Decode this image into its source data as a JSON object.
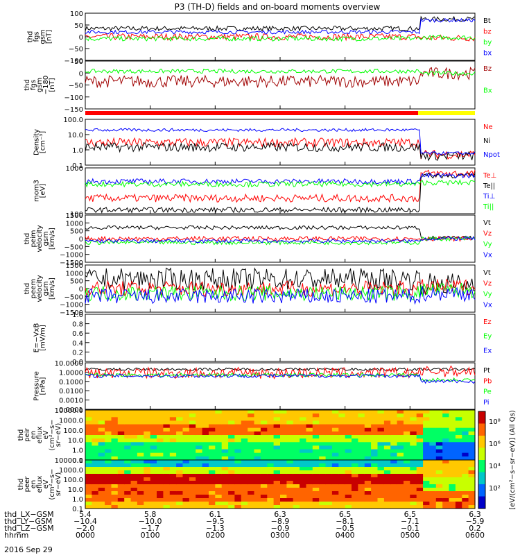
{
  "title": "P3 (TH-D) fields and on-board moments overview",
  "colors": {
    "black": "#000000",
    "red": "#ff0000",
    "green": "#00ff00",
    "blue": "#0000ff",
    "darkred": "#a00000",
    "yellow": "#ffff00"
  },
  "chart_data": [
    {
      "type": "line",
      "ylabel_lines": [
        "thd",
        "fgs",
        "gsm",
        "[nT]"
      ],
      "yticks": [
        "100",
        "50",
        "0",
        "−50",
        "−100"
      ],
      "ylim": [
        -100,
        100
      ],
      "series": [
        {
          "name": "Bt",
          "color": "#000000",
          "level": 35,
          "late_level": 75,
          "noise": 10
        },
        {
          "name": "bz",
          "color": "#ff0000",
          "level": 0,
          "late_level": -5,
          "noise": 14
        },
        {
          "name": "by",
          "color": "#00ff00",
          "level": -8,
          "late_level": -3,
          "noise": 10
        },
        {
          "name": "bx",
          "color": "#0000ff",
          "level": 20,
          "late_level": 70,
          "noise": 8
        }
      ]
    },
    {
      "type": "line",
      "ylabel_lines": [
        "thd",
        "fgs",
        "gsm",
        "−180",
        "[nT]"
      ],
      "yticks": [
        "50",
        "0",
        "−50",
        "−100",
        "−150"
      ],
      "ylim": [
        -175,
        60
      ],
      "series": [
        {
          "name": "Bz",
          "color": "#a00000",
          "level": -40,
          "late_level": 0,
          "noise": 30
        },
        {
          "name": "Bx",
          "color": "#00ff00",
          "level": 10,
          "late_level": 0,
          "noise": 10
        }
      ]
    },
    {
      "type": "line",
      "ylabel_lines": [
        "Density",
        "[cm⁻³]"
      ],
      "yticks": [
        "100.0",
        "10.0",
        "1.0",
        "0.1"
      ],
      "ylim": [
        0.1,
        100
      ],
      "log": true,
      "series": [
        {
          "name": "Ne",
          "color": "#ff0000",
          "level": 3,
          "late_level": 0.5,
          "noise": 0.3
        },
        {
          "name": "Ni",
          "color": "#000000",
          "level": 1.5,
          "late_level": 0.4,
          "noise": 0.3
        },
        {
          "name": "Npot",
          "color": "#0000ff",
          "level": 20,
          "late_level": 0.6,
          "noise": 0.1
        }
      ]
    },
    {
      "type": "line",
      "ylabel_lines": [
        "mom3",
        "[eV]"
      ],
      "yticks": [
        "1000",
        "100"
      ],
      "ylim": [
        50,
        3000
      ],
      "log": true,
      "series": [
        {
          "name": "Te⊥",
          "color": "#ff0000",
          "level": 200,
          "late_level": 1800,
          "noise": 0.15
        },
        {
          "name": "Te||",
          "color": "#000000",
          "level": 70,
          "late_level": 1500,
          "noise": 0.1
        },
        {
          "name": "Ti⊥",
          "color": "#0000ff",
          "level": 900,
          "late_level": 1500,
          "noise": 0.1
        },
        {
          "name": "Ti||",
          "color": "#00ff00",
          "level": 700,
          "late_level": 800,
          "noise": 0.1
        }
      ]
    },
    {
      "type": "line",
      "ylabel_lines": [
        "thd",
        "peim",
        "velocity",
        "gsm",
        "[km/s]"
      ],
      "yticks": [
        "1500",
        "1000",
        "500",
        "0",
        "−500",
        "−1000",
        "−1500"
      ],
      "ylim": [
        -1500,
        1500
      ],
      "series": [
        {
          "name": "Vt",
          "color": "#000000",
          "level": 700,
          "late_level": 50,
          "noise": 120
        },
        {
          "name": "Vz",
          "color": "#ff0000",
          "level": 0,
          "late_level": 0,
          "noise": 150
        },
        {
          "name": "Vy",
          "color": "#00ff00",
          "level": -250,
          "late_level": -10,
          "noise": 130
        },
        {
          "name": "Vx",
          "color": "#0000ff",
          "level": -150,
          "late_level": 0,
          "noise": 120
        }
      ]
    },
    {
      "type": "line",
      "ylabel_lines": [
        "thd",
        "peem",
        "velocity",
        "gsm",
        "[km/s]"
      ],
      "yticks": [
        "1500",
        "1000",
        "500",
        "0",
        "−500",
        "−1000",
        "−1500"
      ],
      "ylim": [
        -1500,
        1500
      ],
      "series": [
        {
          "name": "Vt",
          "color": "#000000",
          "level": 600,
          "late_level": 300,
          "noise": 700
        },
        {
          "name": "Vz",
          "color": "#ff0000",
          "level": 0,
          "late_level": 100,
          "noise": 500
        },
        {
          "name": "Vy",
          "color": "#00ff00",
          "level": -300,
          "late_level": -100,
          "noise": 500
        },
        {
          "name": "Vx",
          "color": "#0000ff",
          "level": -500,
          "late_level": -300,
          "noise": 500
        }
      ]
    },
    {
      "type": "line",
      "ylabel_lines": [
        "E=−VxB",
        "[mV/m]"
      ],
      "yticks": [
        "1.0",
        "0.8",
        "0.6",
        "0.4",
        "0.2",
        "0.0"
      ],
      "ylim": [
        0,
        1
      ],
      "series": [
        {
          "name": "Ez",
          "color": "#ff0000"
        },
        {
          "name": "Ey",
          "color": "#00ff00"
        },
        {
          "name": "Ex",
          "color": "#0000ff"
        }
      ]
    },
    {
      "type": "line",
      "ylabel_lines": [
        "Pressure",
        "[nPa]"
      ],
      "yticks": [
        "10.0000",
        "1.0000",
        "0.1000",
        "0.0100",
        "0.0010",
        "0.0001"
      ],
      "ylim": [
        0.0001,
        10
      ],
      "log": true,
      "series": [
        {
          "name": "Pt",
          "color": "#000000",
          "level": 2.0,
          "late_level": 2.0,
          "noise": 0.15
        },
        {
          "name": "Pb",
          "color": "#ff0000",
          "level": 0.8,
          "late_level": 1.2,
          "noise": 0.6
        },
        {
          "name": "Pe",
          "color": "#00ff00",
          "level": 0.5,
          "late_level": 0.15,
          "noise": 0.2
        },
        {
          "name": "Pi",
          "color": "#0000ff",
          "level": 0.4,
          "late_level": 0.1,
          "noise": 0.2
        }
      ]
    },
    {
      "type": "heatmap",
      "ylabel_lines": [
        "thd",
        "peir",
        "en",
        "eflux",
        "eV",
        "(cm²−s−",
        "sr−eV)"
      ],
      "yticks": [
        "10000.0",
        "1000.0",
        "100.0",
        "10.0",
        "1.0",
        "0.1"
      ],
      "ylim": [
        0.1,
        20000
      ],
      "log": true
    },
    {
      "type": "heatmap",
      "ylabel_lines": [
        "thd",
        "peer",
        "en",
        "eflux",
        "eV",
        "(cm²−s−",
        "sr−eV)"
      ],
      "yticks": [
        "10000.0",
        "1000.0",
        "100.0",
        "10.0",
        "1.0",
        "0.1"
      ],
      "ylim": [
        0.1,
        20000
      ],
      "log": true
    }
  ],
  "colorbar": {
    "ticks": [
      "10⁸",
      "10⁶",
      "10⁴",
      "10²"
    ],
    "label": "[eV/(cm²−s−sr−eV)] (All Qs)"
  },
  "x_axis": {
    "rows": [
      {
        "label": "thd_LX−GSM",
        "values": [
          "5.4",
          "5.8",
          "6.1",
          "6.3",
          "6.5",
          "6.5",
          "6.3"
        ]
      },
      {
        "label": "thd_LY−GSM",
        "values": [
          "−10.4",
          "−10.0",
          "−9.5",
          "−8.9",
          "−8.1",
          "−7.1",
          "−5.9"
        ]
      },
      {
        "label": "thd_LZ−GSM",
        "values": [
          "−2.0",
          "−1.7",
          "−1.3",
          "−0.9",
          "−0.5",
          "−0.1",
          "0.2"
        ]
      },
      {
        "label": "hhmm",
        "values": [
          "0000",
          "0100",
          "0200",
          "0300",
          "0400",
          "0500",
          "0600"
        ]
      }
    ],
    "date": "2016 Sep 29"
  }
}
